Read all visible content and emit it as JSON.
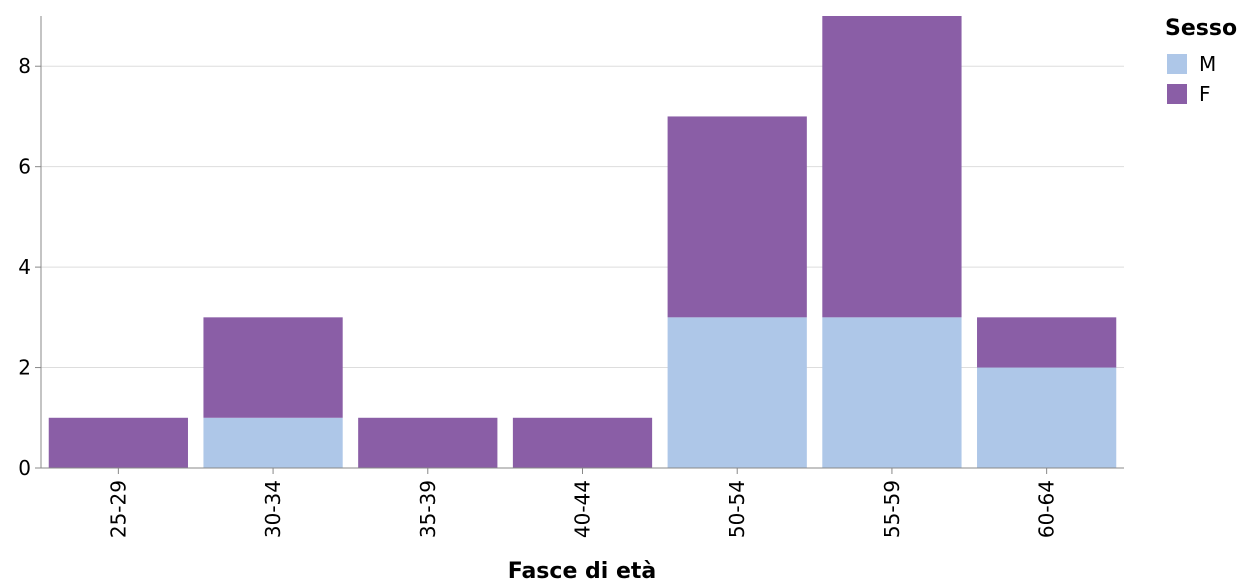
{
  "chart_data": {
    "type": "bar",
    "stacked": true,
    "categories": [
      "25-29",
      "30-34",
      "35-39",
      "40-44",
      "50-54",
      "55-59",
      "60-64"
    ],
    "series": [
      {
        "name": "M",
        "values": [
          0,
          1,
          0,
          0,
          3,
          3,
          2
        ],
        "color": "#aec7e8"
      },
      {
        "name": "F",
        "values": [
          1,
          2,
          1,
          1,
          4,
          6,
          1
        ],
        "color": "#8a5ea6"
      }
    ],
    "xlabel": "Fasce di età",
    "ylabel": "",
    "ylim": [
      0,
      9
    ],
    "yticks": [
      0,
      2,
      4,
      6,
      8
    ],
    "grid": true,
    "legend": {
      "title": "Sesso",
      "placement": "right"
    }
  }
}
